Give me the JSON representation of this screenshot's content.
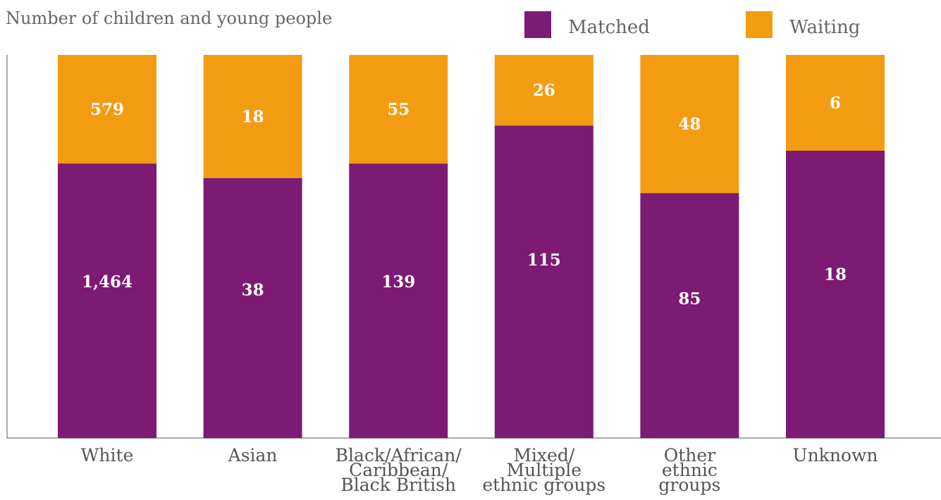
{
  "chart_data": {
    "type": "bar",
    "stacked": true,
    "normalized": true,
    "ylabel": "Number of children and young people",
    "xlabel": "",
    "legend_position": "top-right",
    "categories": [
      [
        "White"
      ],
      [
        "Asian"
      ],
      [
        "Black/African/",
        "Caribbean/",
        "Black British"
      ],
      [
        "Mixed/",
        "Multiple",
        "ethnic groups"
      ],
      [
        "Other",
        "ethnic",
        "groups"
      ],
      [
        "Unknown"
      ]
    ],
    "series": [
      {
        "name": "Matched",
        "color": "#7d1a74",
        "values": [
          1464,
          38,
          139,
          115,
          85,
          18
        ],
        "labels": [
          "1,464",
          "38",
          "139",
          "115",
          "85",
          "18"
        ]
      },
      {
        "name": "Waiting",
        "color": "#f39c12",
        "values": [
          579,
          18,
          55,
          26,
          48,
          6
        ],
        "labels": [
          "579",
          "18",
          "55",
          "26",
          "48",
          "6"
        ]
      }
    ]
  }
}
